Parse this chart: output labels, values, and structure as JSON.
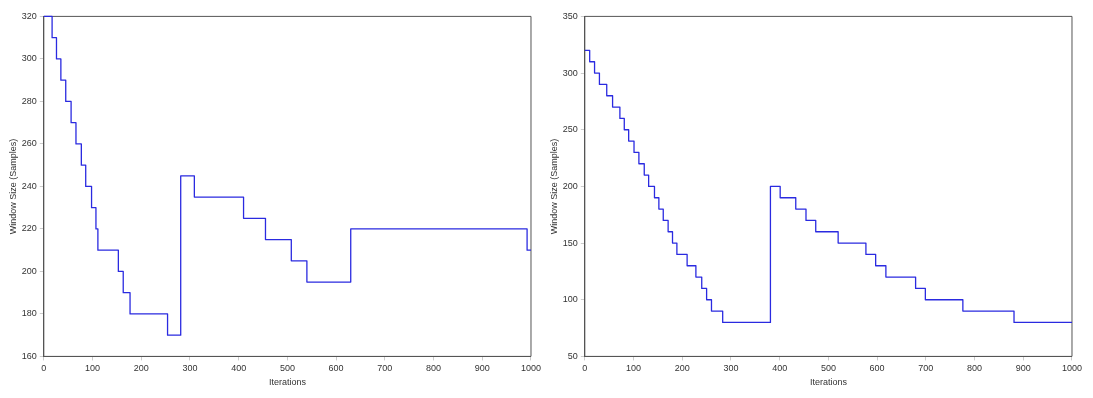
{
  "chart_data": [
    {
      "type": "step",
      "xlabel": "Iterations",
      "ylabel": "Window Size (Samples)",
      "xlim": [
        0,
        1000
      ],
      "ylim": [
        160,
        320
      ],
      "xticks": [
        0,
        100,
        200,
        300,
        400,
        500,
        600,
        700,
        800,
        900,
        1000
      ],
      "yticks": [
        160,
        180,
        200,
        220,
        240,
        260,
        280,
        300,
        320
      ],
      "grid": false,
      "legend": false,
      "series": [
        {
          "color": "#2a2ae0",
          "x": [
            0,
            17,
            26,
            35,
            45,
            56,
            66,
            77,
            86,
            98,
            107,
            111,
            153,
            163,
            177,
            254,
            281,
            309,
            410,
            455,
            508,
            540,
            630,
            992,
            1000
          ],
          "values": [
            320,
            310,
            300,
            290,
            280,
            270,
            260,
            250,
            240,
            230,
            220,
            210,
            200,
            190,
            180,
            170,
            245,
            235,
            225,
            215,
            205,
            195,
            220,
            210,
            210
          ]
        }
      ]
    },
    {
      "type": "step",
      "xlabel": "Iterations",
      "ylabel": "Window Size (Samples)",
      "xlim": [
        0,
        1000
      ],
      "ylim": [
        50,
        350
      ],
      "xticks": [
        0,
        100,
        200,
        300,
        400,
        500,
        600,
        700,
        800,
        900,
        1000
      ],
      "yticks": [
        50,
        100,
        150,
        200,
        250,
        300,
        350
      ],
      "grid": false,
      "legend": false,
      "series": [
        {
          "color": "#2a2ae0",
          "x": [
            0,
            10,
            20,
            30,
            45,
            57,
            72,
            81,
            90,
            101,
            111,
            122,
            131,
            143,
            152,
            161,
            171,
            180,
            189,
            210,
            228,
            240,
            250,
            260,
            283,
            381,
            401,
            433,
            454,
            474,
            520,
            577,
            597,
            618,
            679,
            699,
            776,
            881,
            1000
          ],
          "values": [
            320,
            310,
            300,
            290,
            280,
            270,
            260,
            250,
            240,
            230,
            220,
            210,
            200,
            190,
            180,
            170,
            160,
            150,
            140,
            130,
            120,
            110,
            100,
            90,
            80,
            200,
            190,
            180,
            170,
            160,
            150,
            140,
            130,
            120,
            110,
            100,
            90,
            80,
            80
          ]
        }
      ]
    }
  ]
}
